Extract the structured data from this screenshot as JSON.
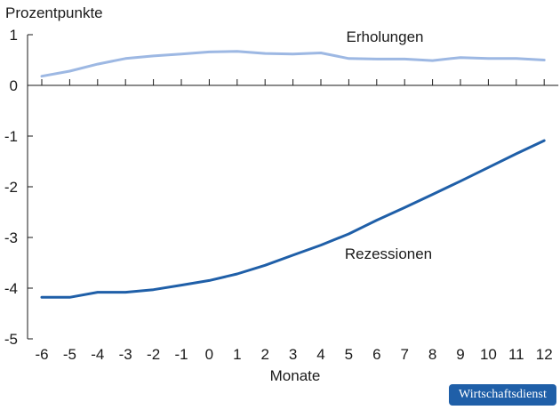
{
  "chart_data": {
    "type": "line",
    "ylabel": "Prozentpunkte",
    "xlabel": "Monate",
    "x": [
      -6,
      -5,
      -4,
      -3,
      -2,
      -1,
      0,
      1,
      2,
      3,
      4,
      5,
      6,
      7,
      8,
      9,
      10,
      11,
      12
    ],
    "x_tick_labels": [
      "-6",
      "-5",
      "-4",
      "-3",
      "-2",
      "-1",
      "0",
      "1",
      "2",
      "3",
      "4",
      "5",
      "6",
      "7",
      "8",
      "9",
      "10",
      "11",
      "12"
    ],
    "y_ticks": [
      1,
      0,
      -1,
      -2,
      -3,
      -4,
      -5
    ],
    "y_tick_labels": [
      "1",
      "0",
      "-1",
      "-2",
      "-3",
      "-4",
      "-5"
    ],
    "ylim": [
      -5,
      1
    ],
    "grid": false,
    "series": [
      {
        "name": "Erholungen",
        "color": "#9db8e3",
        "values": [
          0.18,
          0.28,
          0.42,
          0.53,
          0.58,
          0.62,
          0.66,
          0.67,
          0.63,
          0.62,
          0.64,
          0.53,
          0.52,
          0.52,
          0.49,
          0.55,
          0.53,
          0.53,
          0.5
        ]
      },
      {
        "name": "Rezessionen",
        "color": "#1f5fa8",
        "values": [
          -4.18,
          -4.18,
          -4.08,
          -4.08,
          -4.03,
          -3.94,
          -3.85,
          -3.72,
          -3.55,
          -3.35,
          -3.15,
          -2.93,
          -2.66,
          -2.41,
          -2.15,
          -1.89,
          -1.62,
          -1.35,
          -1.09
        ]
      }
    ]
  },
  "badge": {
    "text": "Wirtschaftsdienst",
    "color": "#1f5fa8"
  }
}
